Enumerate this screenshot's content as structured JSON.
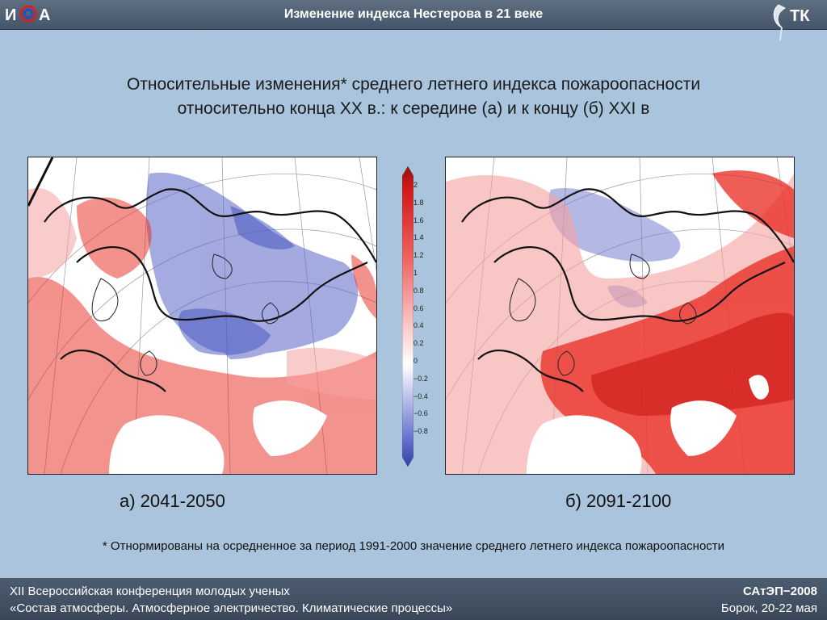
{
  "header": {
    "title": "Изменение индекса Нестерова в 21 веке",
    "logo_left_text": "ИФА",
    "logo_right_text": "ТК"
  },
  "slide": {
    "title_line1": "Относительные изменения* среднего летнего индекса пожароопасности",
    "title_line2": "относительно конца XX в.: к  середине (а) и к концу (б) XXI в"
  },
  "colorbar": {
    "labels": [
      "2",
      "1.8",
      "1.6",
      "1.4",
      "1.2",
      "1",
      "0.8",
      "0.6",
      "0.4",
      "0.2",
      "0",
      "−0.2",
      "−0.4",
      "−0.6",
      "−0.8"
    ]
  },
  "panels": {
    "a_caption": "а) 2041-2050",
    "b_caption": "б) 2091-2100"
  },
  "footnote": "* Отнормированы на осредненное за период 1991-2000 значение среднего летнего индекса пожароопасности",
  "footer": {
    "line1_left": "XII Всероссийская конференция молодых ученых",
    "line2_left": "«Состав атмосферы. Атмосферное электричество. Климатические процессы»",
    "line1_right": "САтЭП−2008",
    "line2_right": "Борок, 20-22 мая"
  },
  "colors": {
    "header_bg": "#4e5d72",
    "slide_bg": "#a9c4dc",
    "positive": "#e8281e",
    "negative": "#5a66c8"
  }
}
